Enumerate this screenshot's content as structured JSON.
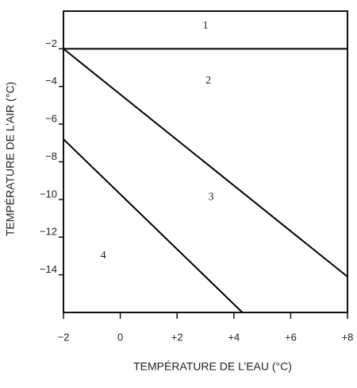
{
  "chart_data": {
    "type": "line",
    "x_label": "TEMPÉRATURE DE L’EAU (°C)",
    "y_label": "TEMPÉRATURE DE L’AIR (°C)",
    "xlim": [
      -2,
      8
    ],
    "ylim": [
      -16,
      0
    ],
    "xticks": [
      {
        "value": -2,
        "label": "−2"
      },
      0,
      {
        "value": 2,
        "label": "+2"
      },
      {
        "value": 4,
        "label": "+4"
      },
      {
        "value": 6,
        "label": "+6"
      },
      {
        "value": 8,
        "label": "+8"
      }
    ],
    "yticks": [
      {
        "value": -2,
        "label": "−2"
      },
      {
        "value": -4,
        "label": "−4"
      },
      {
        "value": -6,
        "label": "−6"
      },
      {
        "value": -8,
        "label": "−8"
      },
      {
        "value": -10,
        "label": "−10"
      },
      {
        "value": -12,
        "label": "−12"
      },
      {
        "value": -14,
        "label": "−14"
      }
    ],
    "grid": false,
    "series": [
      {
        "color": "#000000",
        "x": [
          -2,
          8
        ],
        "values": [
          -2,
          -2
        ]
      },
      {
        "color": "#000000",
        "x": [
          -2,
          8
        ],
        "values": [
          -2,
          -14.1
        ]
      },
      {
        "color": "#000000",
        "x": [
          -2,
          4.3
        ],
        "values": [
          -6.8,
          -16
        ]
      }
    ],
    "annotations": [
      {
        "text": "1",
        "x": 3,
        "y": -0.8
      },
      {
        "text": "2",
        "x": 3.1,
        "y": -3.7
      },
      {
        "text": "3",
        "x": 3.2,
        "y": -9.9
      },
      {
        "text": "4",
        "x": -0.6,
        "y": -13
      }
    ]
  }
}
